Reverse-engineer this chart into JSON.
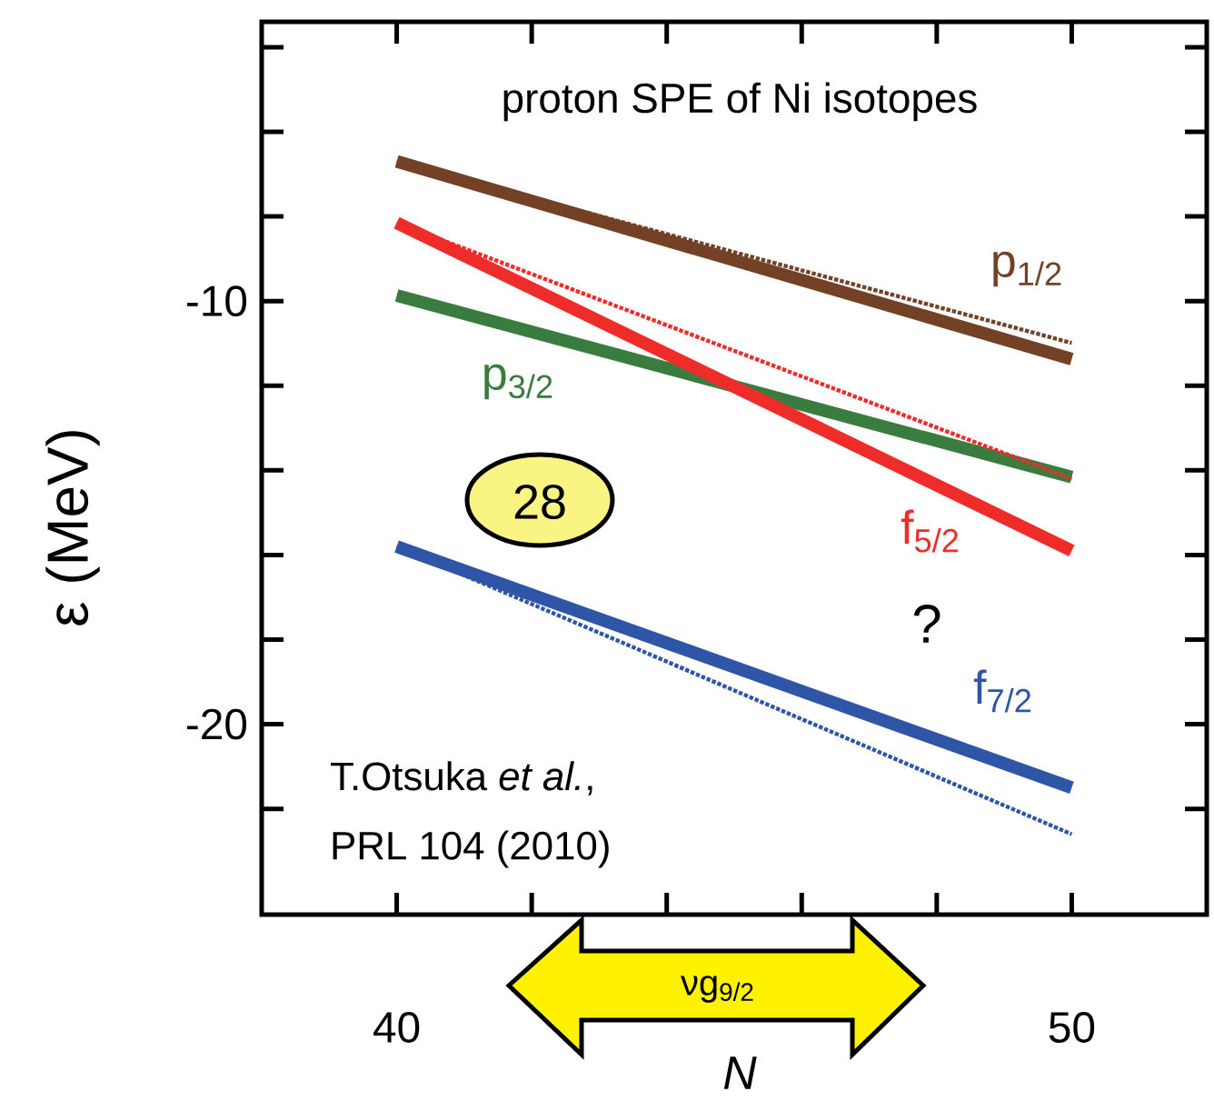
{
  "chart_data": {
    "type": "line",
    "title": "proton SPE of Ni isotopes",
    "xlabel": "N",
    "ylabel": "ε (MeV)",
    "x": [
      40,
      50
    ],
    "series": [
      {
        "name": "p$_{1/2}$",
        "color": "#734226",
        "values": [
          -6.7,
          -11.37
        ]
      },
      {
        "color": "#734226",
        "values": [
          -6.7,
          -10.99
        ],
        "line_style": "dotted"
      },
      {
        "name": "p$_{3/2}$",
        "color": "#3a7b3f",
        "values": [
          -9.87,
          -14.16
        ]
      },
      {
        "name": "f$_{5/2}$",
        "color": "#ee2d2a",
        "values": [
          -8.15,
          -15.9
        ]
      },
      {
        "color": "#ee2d2a",
        "values": [
          -8.15,
          -14.2
        ],
        "line_style": "dotted"
      },
      {
        "name": "f$_{7/2}$",
        "color": "#2f56a6",
        "values": [
          -15.8,
          -21.5
        ]
      },
      {
        "color": "#2f56a6",
        "values": [
          -15.8,
          -22.6
        ],
        "line_style": "dotted"
      }
    ],
    "xlim": [
      38,
      52
    ],
    "ylim": [
      -24.5,
      -3.4
    ],
    "xticks": [
      40,
      {
        "value": 42,
        "label": null
      },
      {
        "value": 44,
        "label": null
      },
      {
        "value": 46,
        "label": null
      },
      {
        "value": 48,
        "label": null
      },
      50
    ],
    "yticks": [
      {
        "value": -22,
        "label": null
      },
      -20,
      {
        "value": -18,
        "label": null
      },
      {
        "value": -16,
        "label": null
      },
      {
        "value": -14,
        "label": null
      },
      {
        "value": -12,
        "label": null
      },
      -10,
      {
        "value": -8,
        "label": null
      },
      {
        "value": -6,
        "label": null
      },
      {
        "value": -4,
        "label": null
      }
    ],
    "grid": false,
    "marker": "none",
    "line_style": "solid",
    "annotations": [
      "28",
      "?",
      "T.Otsuka *et al.*,",
      "PRL 104 (2010)",
      "νg$_{9/2}$"
    ]
  }
}
